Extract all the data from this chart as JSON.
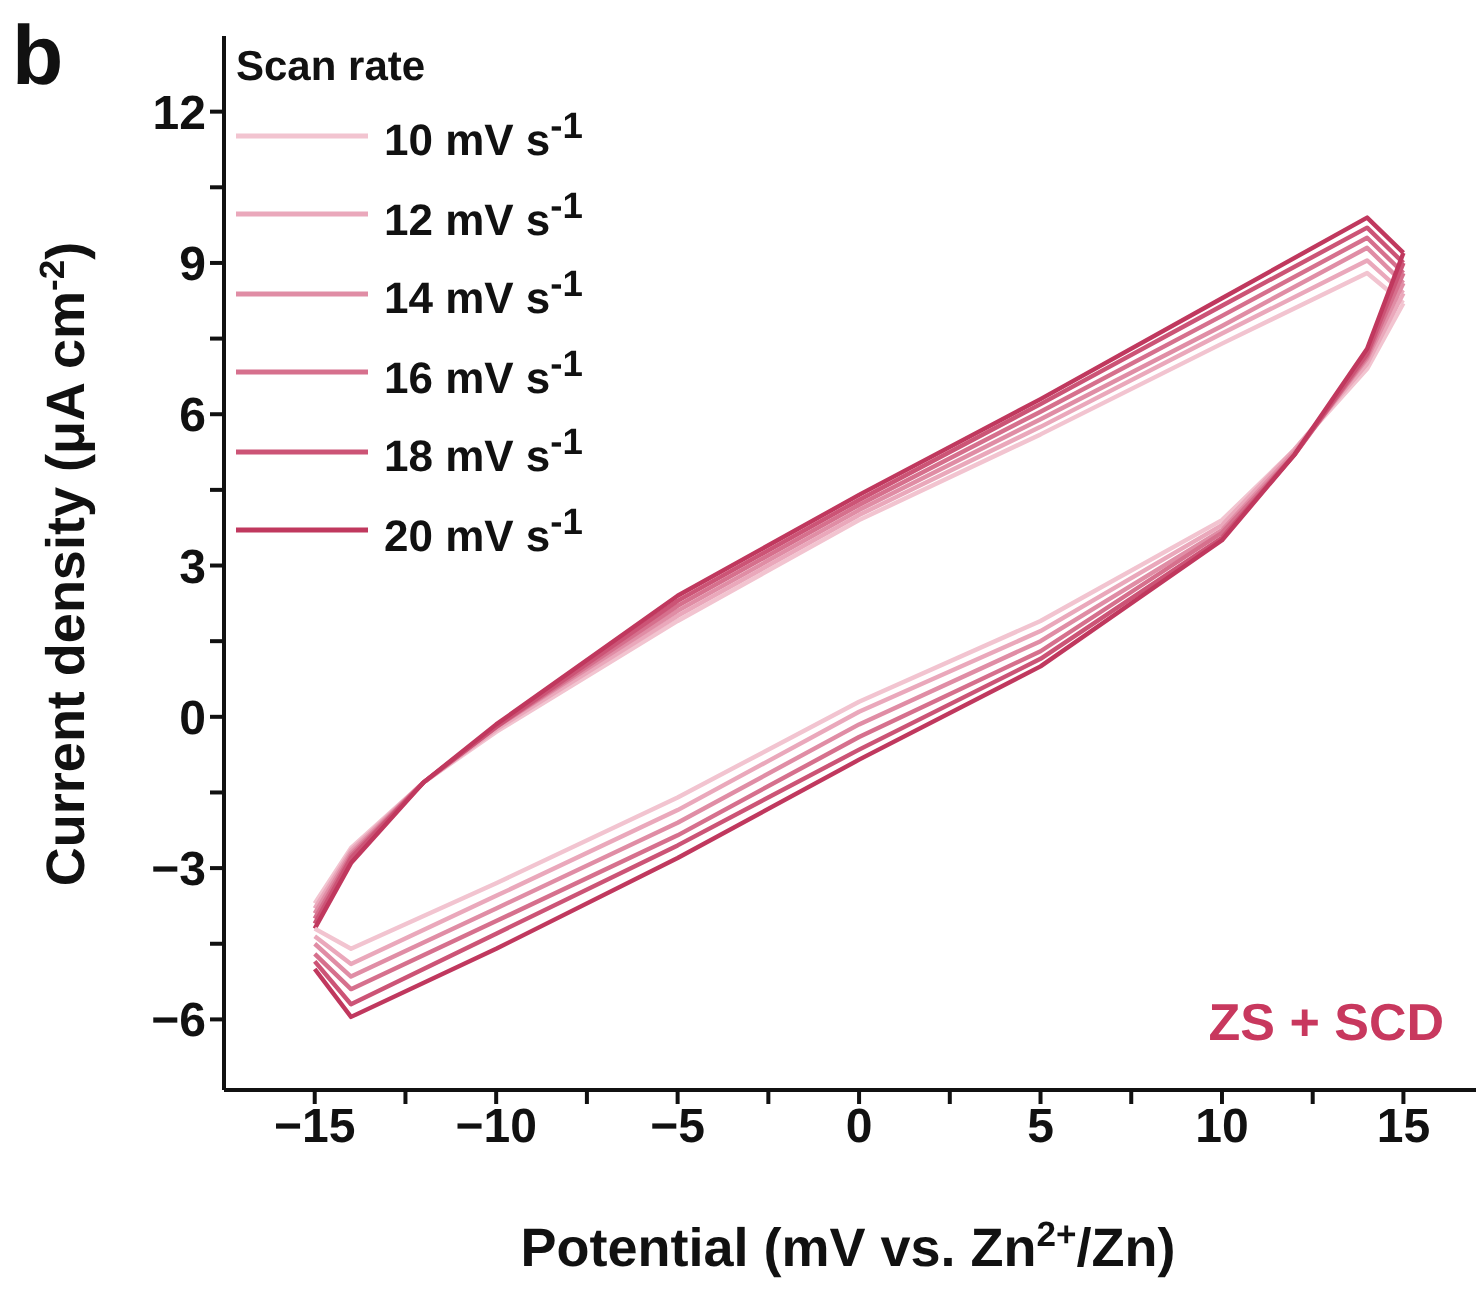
{
  "chart_data": {
    "type": "line",
    "xlabel": "Potential (mV vs. Zn$^{2+}$/Zn)",
    "ylabel": "Current density (μA cm$^{-2}$)",
    "legend_title": "Scan rate",
    "legend": "top left",
    "marker": "none",
    "line_style": "solid",
    "annotations": [
      "b",
      "ZS + SCD"
    ],
    "xlim": [
      -17.5,
      17
    ],
    "ylim": [
      -7.4,
      13.5
    ],
    "xticks": [
      -15,
      {
        "value": -12.5,
        "label": null
      },
      -10,
      {
        "value": -7.5,
        "label": null
      },
      -5,
      {
        "value": -2.5,
        "label": null
      },
      0,
      {
        "value": 2.5,
        "label": null
      },
      5,
      {
        "value": 7.5,
        "label": null
      },
      10,
      {
        "value": 12.5,
        "label": null
      },
      15
    ],
    "yticks": [
      -6,
      {
        "value": -4.5,
        "label": null
      },
      -3,
      {
        "value": -1.5,
        "label": null
      },
      0,
      {
        "value": 1.5,
        "label": null
      },
      3,
      {
        "value": 4.5,
        "label": null
      },
      6,
      {
        "value": 7.5,
        "label": null
      },
      9,
      {
        "value": 10.5,
        "label": null
      },
      12
    ],
    "series": [
      {
        "name": "10 mV s$^{-1}$",
        "color": "#f2c4d0",
        "x": [
          -15,
          -14,
          -12,
          -10,
          -5,
          0,
          5,
          10,
          14,
          15
        ],
        "values": [
          -3.7,
          -2.6,
          -1.3,
          -0.3,
          1.9,
          3.9,
          5.6,
          7.4,
          8.8,
          8.2
        ]
      },
      {
        "name": "12 mV s$^{-1}$",
        "color": "#eaa8bb",
        "x": [
          -15,
          -14,
          -12,
          -10,
          -5,
          0,
          5,
          10,
          14,
          15
        ],
        "values": [
          -3.8,
          -2.65,
          -1.3,
          -0.25,
          2.0,
          4.0,
          5.75,
          7.6,
          9.05,
          8.4
        ]
      },
      {
        "name": "14 mV s$^{-1}$",
        "color": "#e08da5",
        "x": [
          -15,
          -14,
          -12,
          -10,
          -5,
          0,
          5,
          10,
          14,
          15
        ],
        "values": [
          -3.9,
          -2.7,
          -1.3,
          -0.2,
          2.1,
          4.1,
          5.9,
          7.75,
          9.3,
          8.6
        ]
      },
      {
        "name": "16 mV s$^{-1}$",
        "color": "#d6708d",
        "x": [
          -15,
          -14,
          -12,
          -10,
          -5,
          0,
          5,
          10,
          14,
          15
        ],
        "values": [
          -4.0,
          -2.75,
          -1.3,
          -0.2,
          2.2,
          4.2,
          6.05,
          7.95,
          9.5,
          8.8
        ]
      },
      {
        "name": "18 mV s$^{-1}$",
        "color": "#cc5476",
        "x": [
          -15,
          -14,
          -12,
          -10,
          -5,
          0,
          5,
          10,
          14,
          15
        ],
        "values": [
          -4.1,
          -2.8,
          -1.3,
          -0.2,
          2.3,
          4.3,
          6.2,
          8.15,
          9.7,
          9.0
        ]
      },
      {
        "name": "20 mV s$^{-1}$",
        "color": "#c0385e",
        "x": [
          -15,
          -14,
          -12,
          -10,
          -5,
          0,
          5,
          10,
          14,
          15
        ],
        "values": [
          -4.2,
          -2.9,
          -1.3,
          -0.15,
          2.4,
          4.4,
          6.3,
          8.3,
          9.9,
          9.2
        ]
      },
      {
        "color": "#f2c4d0",
        "x": [
          -15,
          -14,
          -10,
          -5,
          0,
          5,
          10,
          12,
          14,
          15
        ],
        "values": [
          -4.2,
          -4.6,
          -3.3,
          -1.6,
          0.3,
          1.9,
          3.9,
          5.3,
          6.9,
          8.2
        ]
      },
      {
        "color": "#eaa8bb",
        "x": [
          -15,
          -14,
          -10,
          -5,
          0,
          5,
          10,
          12,
          14,
          15
        ],
        "values": [
          -4.35,
          -4.9,
          -3.55,
          -1.85,
          0.1,
          1.7,
          3.8,
          5.3,
          7.0,
          8.4
        ]
      },
      {
        "color": "#e08da5",
        "x": [
          -15,
          -14,
          -10,
          -5,
          0,
          5,
          10,
          12,
          14,
          15
        ],
        "values": [
          -4.5,
          -5.15,
          -3.8,
          -2.1,
          -0.15,
          1.5,
          3.7,
          5.25,
          7.1,
          8.6
        ]
      },
      {
        "color": "#d6708d",
        "x": [
          -15,
          -14,
          -10,
          -5,
          0,
          5,
          10,
          12,
          14,
          15
        ],
        "values": [
          -4.7,
          -5.4,
          -4.05,
          -2.35,
          -0.4,
          1.3,
          3.65,
          5.2,
          7.15,
          8.8
        ]
      },
      {
        "color": "#cc5476",
        "x": [
          -15,
          -14,
          -10,
          -5,
          0,
          5,
          10,
          12,
          14,
          15
        ],
        "values": [
          -4.85,
          -5.7,
          -4.3,
          -2.55,
          -0.65,
          1.15,
          3.55,
          5.2,
          7.2,
          9.0
        ]
      },
      {
        "color": "#c0385e",
        "x": [
          -15,
          -14,
          -10,
          -5,
          0,
          5,
          10,
          12,
          14,
          15
        ],
        "values": [
          -5.0,
          -5.95,
          -4.6,
          -2.8,
          -0.85,
          1.0,
          3.5,
          5.2,
          7.3,
          9.2
        ]
      }
    ]
  }
}
